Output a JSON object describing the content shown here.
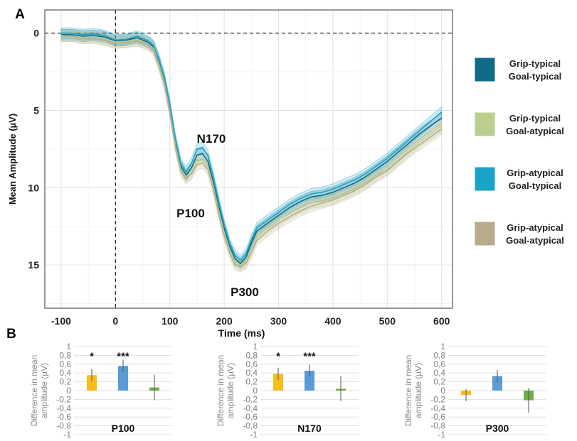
{
  "panel_a_label": "A",
  "panel_b_label": "B",
  "chart_data": [
    {
      "type": "line",
      "xlabel": "Time (ms)",
      "ylabel": "Mean Amplitude (µV)",
      "xlim": [
        -130,
        620
      ],
      "ylim": [
        -1.5,
        17.8
      ],
      "y_inverted": true,
      "xticks": [
        "-100",
        "0",
        "100",
        "200",
        "300",
        "400",
        "500",
        "600"
      ],
      "yticks": [
        "0",
        "5",
        "10",
        "15"
      ],
      "grid": true,
      "reference_lines": {
        "x": 0,
        "y": 0,
        "style": "dashed"
      },
      "legend_position": "right",
      "annotations": [
        "N170",
        "P100",
        "P300"
      ],
      "series": [
        {
          "name": "Grip-typical Goal-typical",
          "color": "#0f6b86",
          "x": [
            -100,
            -80,
            -60,
            -40,
            -20,
            0,
            20,
            40,
            60,
            70,
            80,
            90,
            100,
            110,
            120,
            130,
            140,
            150,
            160,
            170,
            180,
            190,
            200,
            210,
            220,
            230,
            240,
            250,
            260,
            280,
            300,
            320,
            340,
            360,
            380,
            400,
            420,
            440,
            460,
            480,
            500,
            520,
            540,
            560,
            580,
            600
          ],
          "y": [
            0.1,
            0.1,
            0.2,
            0.15,
            0.25,
            0.5,
            0.45,
            0.3,
            0.6,
            0.9,
            1.8,
            3.0,
            4.8,
            7.0,
            8.6,
            9.2,
            8.7,
            7.9,
            7.8,
            8.3,
            9.6,
            11.2,
            12.6,
            13.8,
            14.6,
            14.9,
            14.5,
            13.6,
            12.8,
            12.3,
            11.8,
            11.3,
            10.9,
            10.6,
            10.5,
            10.3,
            10.0,
            9.7,
            9.3,
            8.8,
            8.3,
            7.7,
            7.1,
            6.5,
            6.0,
            5.5
          ]
        },
        {
          "name": "Grip-typical Goal-atypical",
          "color": "#bccf8e",
          "x": [
            -100,
            -80,
            -60,
            -40,
            -20,
            0,
            20,
            40,
            60,
            70,
            80,
            90,
            100,
            110,
            120,
            130,
            140,
            150,
            160,
            170,
            180,
            190,
            200,
            210,
            220,
            230,
            240,
            250,
            260,
            280,
            300,
            320,
            340,
            360,
            380,
            400,
            420,
            440,
            460,
            480,
            500,
            520,
            540,
            560,
            580,
            600
          ],
          "y": [
            0.15,
            0.2,
            0.3,
            0.3,
            0.4,
            0.6,
            0.55,
            0.45,
            0.7,
            1.0,
            2.0,
            3.2,
            5.0,
            7.2,
            8.8,
            9.3,
            9.0,
            8.3,
            8.2,
            8.6,
            9.9,
            11.5,
            12.9,
            14.0,
            14.8,
            15.0,
            14.8,
            14.0,
            13.2,
            12.6,
            12.1,
            11.7,
            11.3,
            11.0,
            10.9,
            10.7,
            10.4,
            10.1,
            9.7,
            9.2,
            8.8,
            8.2,
            7.6,
            7.0,
            6.5,
            6.0
          ]
        },
        {
          "name": "Grip-atypical Goal-typical",
          "color": "#1aa3c6",
          "x": [
            -100,
            -80,
            -60,
            -40,
            -20,
            0,
            20,
            40,
            60,
            70,
            80,
            90,
            100,
            110,
            120,
            130,
            140,
            150,
            160,
            170,
            180,
            190,
            200,
            210,
            220,
            230,
            240,
            250,
            260,
            280,
            300,
            320,
            340,
            360,
            380,
            400,
            420,
            440,
            460,
            480,
            500,
            520,
            540,
            560,
            580,
            600
          ],
          "y": [
            0.0,
            0.0,
            0.1,
            0.05,
            0.15,
            0.45,
            0.4,
            0.2,
            0.5,
            0.8,
            1.7,
            2.9,
            4.6,
            6.8,
            8.4,
            9.0,
            8.4,
            7.5,
            7.4,
            7.9,
            9.3,
            10.9,
            12.4,
            13.6,
            14.4,
            14.7,
            14.3,
            13.4,
            12.6,
            12.1,
            11.6,
            11.1,
            10.7,
            10.4,
            10.3,
            10.1,
            9.8,
            9.5,
            9.1,
            8.6,
            8.1,
            7.5,
            6.9,
            6.3,
            5.7,
            5.1
          ]
        },
        {
          "name": "Grip-atypical Goal-atypical",
          "color": "#b7ab8c",
          "x": [
            -100,
            -80,
            -60,
            -40,
            -20,
            0,
            20,
            40,
            60,
            70,
            80,
            90,
            100,
            110,
            120,
            130,
            140,
            150,
            160,
            170,
            180,
            190,
            200,
            210,
            220,
            230,
            240,
            250,
            260,
            280,
            300,
            320,
            340,
            360,
            380,
            400,
            420,
            440,
            460,
            480,
            500,
            520,
            540,
            560,
            580,
            600
          ],
          "y": [
            0.2,
            0.2,
            0.35,
            0.3,
            0.45,
            0.65,
            0.6,
            0.5,
            0.75,
            1.1,
            2.1,
            3.3,
            5.1,
            7.3,
            8.9,
            9.4,
            9.1,
            8.5,
            8.4,
            8.8,
            10.1,
            11.7,
            13.1,
            14.2,
            15.0,
            15.1,
            14.9,
            14.2,
            13.4,
            12.8,
            12.3,
            11.9,
            11.5,
            11.2,
            11.0,
            10.8,
            10.5,
            10.2,
            9.8,
            9.3,
            8.9,
            8.3,
            7.7,
            7.2,
            6.7,
            6.2
          ]
        }
      ]
    },
    {
      "type": "bar",
      "title": "P100",
      "ylabel": "Difference in mean amplitude (µV)",
      "ylim": [
        -1,
        1
      ],
      "yticks": [
        "1",
        "0,8",
        "0,6",
        "0,4",
        "0,2",
        "0",
        "-0,2",
        "-0,4",
        "-0,6",
        "-0,8",
        "-1"
      ],
      "values": [
        0.35,
        0.56,
        0.07
      ],
      "errors": [
        0.14,
        0.14,
        0.29
      ],
      "colors": [
        "#f9bd1b",
        "#5a9bd5",
        "#70ad47"
      ],
      "significance": [
        "*",
        "***",
        ""
      ]
    },
    {
      "type": "bar",
      "title": "N170",
      "ylabel": "Difference in mean amplitude (µV)",
      "ylim": [
        -1,
        1
      ],
      "yticks": [
        "1",
        "0,8",
        "0,6",
        "0,4",
        "0,2",
        "0",
        "-0,2",
        "-0,4",
        "-0,6",
        "-0,8",
        "-1"
      ],
      "values": [
        0.38,
        0.45,
        0.04
      ],
      "errors": [
        0.14,
        0.14,
        0.28
      ],
      "colors": [
        "#f9bd1b",
        "#5a9bd5",
        "#70ad47"
      ],
      "significance": [
        "*",
        "***",
        ""
      ]
    },
    {
      "type": "bar",
      "title": "P300",
      "ylabel": "Difference in mean amplitude (µV)",
      "ylim": [
        -1,
        1
      ],
      "yticks": [
        "1",
        "0,8",
        "0,6",
        "0,4",
        "0,2",
        "0",
        "-0,2",
        "-0,4",
        "-0,6",
        "-0,8",
        "-1"
      ],
      "values": [
        -0.1,
        0.33,
        -0.22
      ],
      "errors": [
        0.14,
        0.14,
        0.28
      ],
      "colors": [
        "#f9bd1b",
        "#5a9bd5",
        "#70ad47"
      ],
      "significance": [
        "",
        "",
        ""
      ]
    }
  ]
}
